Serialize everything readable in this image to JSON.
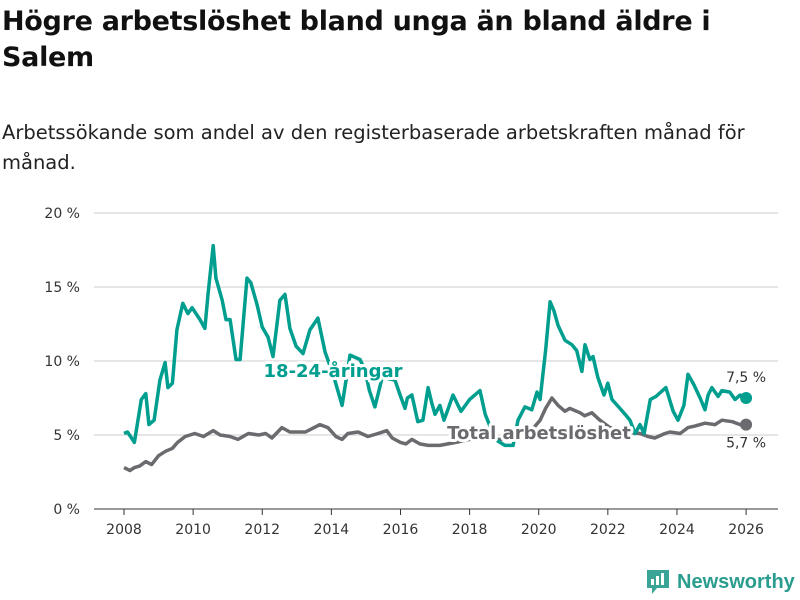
{
  "title": "Högre arbetslöshet bland unga än bland äldre i Salem",
  "subtitle": "Arbetssökande som andel av den registerbaserade arbetskraften månad för månad.",
  "brand": "Newsworthy",
  "colors": {
    "youth": "#009e8e",
    "total": "#6b6a6e",
    "grid": "#dddddd"
  },
  "chart_data": {
    "type": "line",
    "title": "Högre arbetslöshet bland unga än bland äldre i Salem",
    "xlabel": "",
    "ylabel": "",
    "xlim": [
      2007.1,
      2027.0
    ],
    "ylim": [
      0,
      20
    ],
    "y_ticks": [
      0,
      5,
      10,
      15,
      20
    ],
    "y_tick_labels": [
      "0 %",
      "5 %",
      "10 %",
      "15 %",
      "20 %"
    ],
    "x_ticks": [
      2008,
      2010,
      2012,
      2014,
      2016,
      2018,
      2020,
      2022,
      2024,
      2026
    ],
    "x_tick_labels": [
      "2008",
      "2010",
      "2012",
      "2014",
      "2016",
      "2018",
      "2020",
      "2022",
      "2024",
      "2026"
    ],
    "grid": true,
    "series": [
      {
        "name": "18-24-åringar",
        "end_label": "7,5 %",
        "x": [
          2008.0,
          2008.1,
          2008.3,
          2008.5,
          2008.63,
          2008.72,
          2008.87,
          2009.04,
          2009.19,
          2009.27,
          2009.4,
          2009.53,
          2009.7,
          2009.85,
          2009.97,
          2010.2,
          2010.34,
          2010.43,
          2010.58,
          2010.66,
          2010.84,
          2010.95,
          2011.07,
          2011.24,
          2011.36,
          2011.56,
          2011.67,
          2011.85,
          2012.0,
          2012.17,
          2012.31,
          2012.51,
          2012.66,
          2012.8,
          2012.98,
          2013.18,
          2013.38,
          2013.61,
          2013.82,
          2014.05,
          2014.31,
          2014.54,
          2014.83,
          2014.97,
          2015.1,
          2015.26,
          2015.47,
          2015.84,
          2015.99,
          2016.13,
          2016.2,
          2016.33,
          2016.5,
          2016.65,
          2016.8,
          2016.9,
          2017.0,
          2017.14,
          2017.26,
          2017.37,
          2017.52,
          2017.75,
          2018.0,
          2018.3,
          2018.45,
          2018.74,
          2019.02,
          2019.26,
          2019.4,
          2019.6,
          2019.8,
          2019.95,
          2020.04,
          2020.12,
          2020.2,
          2020.33,
          2020.44,
          2020.56,
          2020.76,
          2020.96,
          2021.1,
          2021.25,
          2021.34,
          2021.48,
          2021.57,
          2021.71,
          2021.89,
          2022.0,
          2022.12,
          2022.35,
          2022.5,
          2022.64,
          2022.79,
          2022.93,
          2023.05,
          2023.23,
          2023.39,
          2023.68,
          2023.89,
          2024.03,
          2024.2,
          2024.32,
          2024.49,
          2024.67,
          2024.81,
          2024.9,
          2025.01,
          2025.19,
          2025.3,
          2025.53,
          2025.68,
          2025.83,
          2026.0
        ],
        "values": [
          5.1,
          5.2,
          4.5,
          7.4,
          7.8,
          5.7,
          6.0,
          8.7,
          9.9,
          8.2,
          8.5,
          12.1,
          13.9,
          13.2,
          13.6,
          12.8,
          12.2,
          14.5,
          17.8,
          15.6,
          14.1,
          12.8,
          12.8,
          10.1,
          10.1,
          15.6,
          15.3,
          13.8,
          12.3,
          11.6,
          10.3,
          14.1,
          14.5,
          12.2,
          11.0,
          10.5,
          12.1,
          12.9,
          10.6,
          9.1,
          7.0,
          10.4,
          10.1,
          9.4,
          8.0,
          6.9,
          8.9,
          8.7,
          7.7,
          6.8,
          7.5,
          7.7,
          5.9,
          6.0,
          8.2,
          7.2,
          6.4,
          7.0,
          6.0,
          6.7,
          7.7,
          6.6,
          7.4,
          8.0,
          6.4,
          4.7,
          4.3,
          4.3,
          6.0,
          6.9,
          6.7,
          7.9,
          7.4,
          9.1,
          10.7,
          14.0,
          13.4,
          12.4,
          11.4,
          11.1,
          10.7,
          9.3,
          11.1,
          10.1,
          10.3,
          8.9,
          7.7,
          8.5,
          7.4,
          6.8,
          6.4,
          6.0,
          5.1,
          5.7,
          5.1,
          7.4,
          7.6,
          8.2,
          6.6,
          6.0,
          7.0,
          9.1,
          8.4,
          7.5,
          6.7,
          7.7,
          8.2,
          7.6,
          8.0,
          7.9,
          7.4,
          7.7,
          7.5
        ]
      },
      {
        "name": "Total arbetslöshet",
        "end_label": "5,7 %",
        "x": [
          2008.0,
          2008.17,
          2008.3,
          2008.45,
          2008.63,
          2008.8,
          2009.0,
          2009.2,
          2009.4,
          2009.55,
          2009.77,
          2010.05,
          2010.3,
          2010.58,
          2010.78,
          2011.07,
          2011.3,
          2011.6,
          2011.9,
          2012.1,
          2012.28,
          2012.57,
          2012.8,
          2013.0,
          2013.25,
          2013.5,
          2013.67,
          2013.9,
          2014.13,
          2014.31,
          2014.48,
          2014.77,
          2015.06,
          2015.35,
          2015.6,
          2015.76,
          2016.0,
          2016.16,
          2016.33,
          2016.56,
          2016.8,
          2017.14,
          2017.6,
          2018.0,
          2018.6,
          2019.02,
          2019.4,
          2019.75,
          2020.04,
          2020.2,
          2020.38,
          2020.56,
          2020.76,
          2020.9,
          2021.2,
          2021.33,
          2021.54,
          2021.77,
          2022.06,
          2022.5,
          2022.93,
          2023.16,
          2023.36,
          2023.65,
          2023.8,
          2024.09,
          2024.32,
          2024.52,
          2024.81,
          2025.1,
          2025.3,
          2025.6,
          2025.83,
          2026.0
        ],
        "values": [
          2.8,
          2.6,
          2.8,
          2.9,
          3.2,
          3.0,
          3.6,
          3.9,
          4.1,
          4.5,
          4.9,
          5.1,
          4.9,
          5.3,
          5.0,
          4.9,
          4.7,
          5.1,
          5.0,
          5.1,
          4.8,
          5.5,
          5.2,
          5.2,
          5.2,
          5.5,
          5.7,
          5.5,
          4.9,
          4.7,
          5.1,
          5.2,
          4.9,
          5.1,
          5.3,
          4.8,
          4.5,
          4.4,
          4.7,
          4.4,
          4.3,
          4.3,
          4.5,
          4.7,
          4.7,
          4.7,
          4.7,
          5.2,
          6.0,
          6.8,
          7.5,
          7.0,
          6.6,
          6.8,
          6.5,
          6.3,
          6.5,
          6.0,
          5.5,
          5.2,
          5.1,
          4.9,
          4.8,
          5.1,
          5.2,
          5.1,
          5.5,
          5.6,
          5.8,
          5.7,
          6.0,
          5.9,
          5.7,
          5.7
        ]
      }
    ]
  }
}
